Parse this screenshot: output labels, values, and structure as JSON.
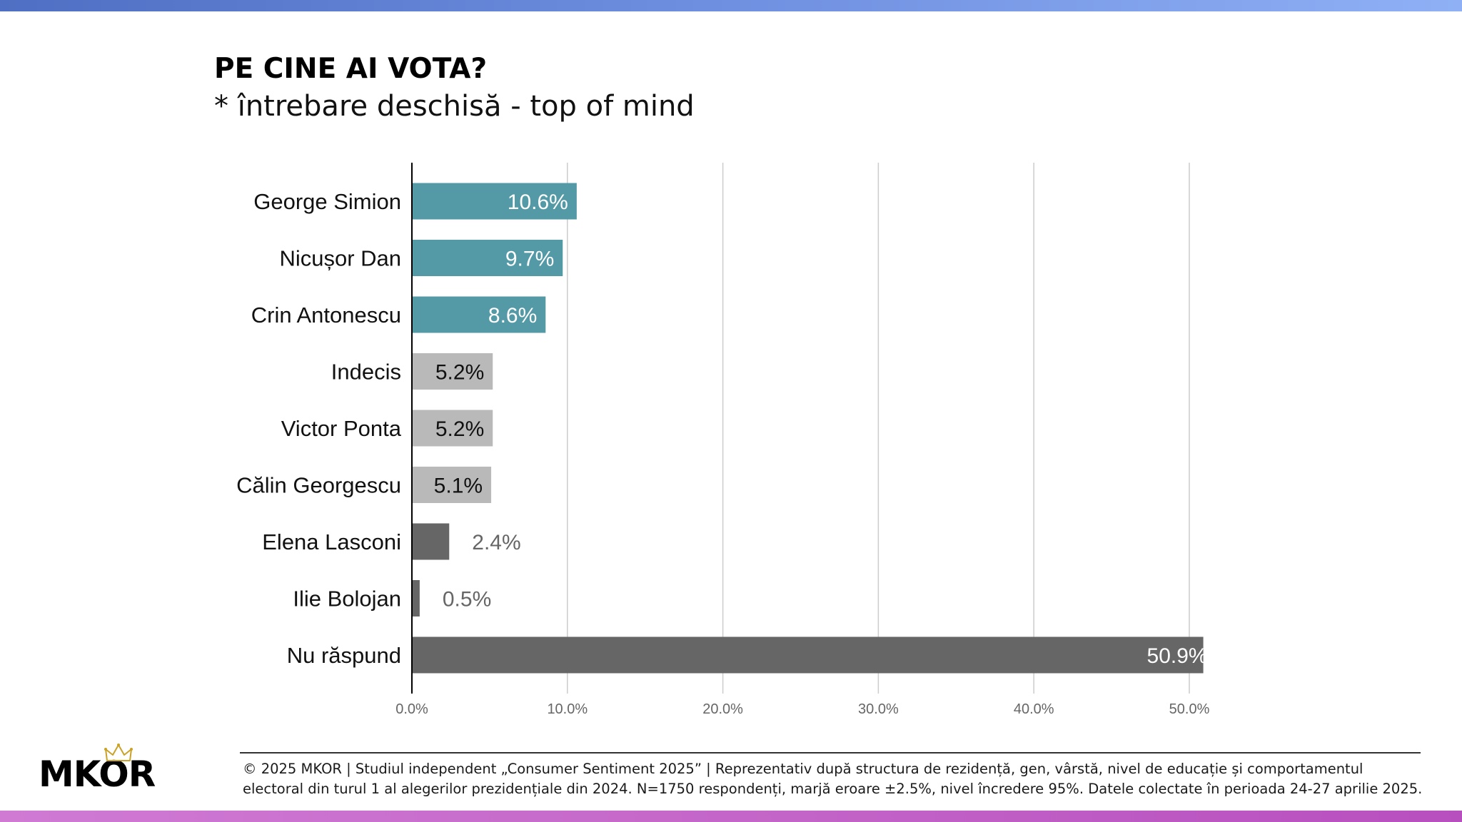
{
  "header": {
    "title": "PE CINE AI VOTA?",
    "subtitle": "* întrebare deschisă - top of mind"
  },
  "colors": {
    "top_bar": "#6f8fe0",
    "bottom_bar": "#c466c9",
    "teal": "#5499a6",
    "light_gray": "#b9b9b9",
    "dark_gray": "#666666"
  },
  "chart_data": {
    "type": "bar",
    "orientation": "horizontal",
    "title": "PE CINE AI VOTA?",
    "subtitle": "* întrebare deschisă - top of mind",
    "xlabel": "",
    "ylabel": "",
    "xlim": [
      0,
      50
    ],
    "x_ticks": [
      "0.0%",
      "10.0%",
      "20.0%",
      "30.0%",
      "40.0%",
      "50.0%"
    ],
    "grid": "vertical",
    "legend": "none",
    "categories": [
      "George Simion",
      "Nicușor Dan",
      "Crin Antonescu",
      "Indecis",
      "Victor Ponta",
      "Călin Georgescu",
      "Elena Lasconi",
      "Ilie Bolojan",
      "Nu răspund"
    ],
    "values": [
      10.6,
      9.7,
      8.6,
      5.2,
      5.2,
      5.1,
      2.4,
      0.5,
      50.9
    ],
    "labels": [
      "10.6%",
      "9.7%",
      "8.6%",
      "5.2%",
      "5.2%",
      "5.1%",
      "2.4%",
      "0.5%",
      "50.9%"
    ],
    "bar_colors": [
      "#5499a6",
      "#5499a6",
      "#5499a6",
      "#b9b9b9",
      "#b9b9b9",
      "#b9b9b9",
      "#666666",
      "#666666",
      "#666666"
    ]
  },
  "footer": {
    "line1": "© 2025 MKOR | Studiul independent „Consumer Sentiment 2025” | Reprezentativ după structura de rezidență, gen, vârstă, nivel de educație și comportamentul",
    "line2": "electoral din turul 1 al alegerilor prezidențiale din 2024. N=1750 respondenți, marjă eroare ±2.5%, nivel încredere 95%. Datele colectate în perioada 24-27 aprilie 2025.",
    "logo_text": "MKOR"
  }
}
